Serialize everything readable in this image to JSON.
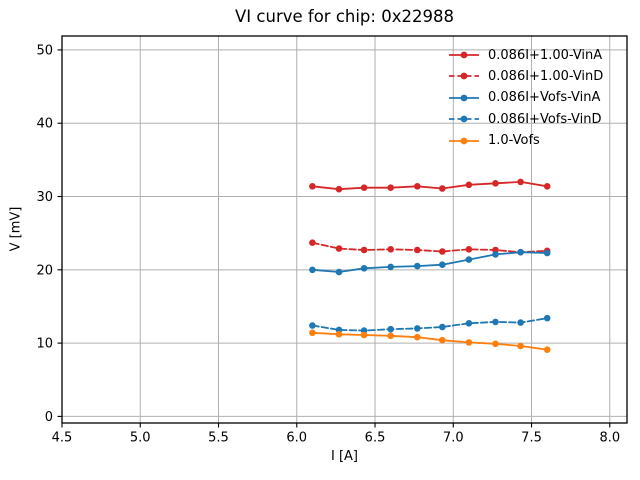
{
  "figure": {
    "title": "VI curve for chip: 0x22988"
  },
  "chart_data": {
    "type": "line",
    "title": "VI curve for chip: 0x22988",
    "xlabel": "I [A]",
    "ylabel": "V [mV]",
    "xlim": [
      4.5,
      8.11
    ],
    "ylim": [
      -0.9,
      51.9
    ],
    "xticks": [
      4.5,
      5.0,
      5.5,
      6.0,
      6.5,
      7.0,
      7.5,
      8.0
    ],
    "xtick_labels": [
      "4.5",
      "5.0",
      "5.5",
      "6.0",
      "6.5",
      "7.0",
      "7.5",
      "8.0"
    ],
    "yticks": [
      0,
      10,
      20,
      30,
      40,
      50
    ],
    "ytick_labels": [
      "0",
      "10",
      "20",
      "30",
      "40",
      "50"
    ],
    "grid": true,
    "grid_color": "#b0b0b0",
    "axis_color": "#000000",
    "background": "#ffffff",
    "legend_position": "upper right",
    "legend_frame": false,
    "x": [
      6.1,
      6.27,
      6.43,
      6.6,
      6.77,
      6.93,
      7.1,
      7.27,
      7.43,
      7.6
    ],
    "series": [
      {
        "name": "0.086I+1.00-VinA",
        "color": "#d62728",
        "line": "solid",
        "marker": "circle",
        "values": [
          31.4,
          31.0,
          31.2,
          31.2,
          31.4,
          31.1,
          31.6,
          31.8,
          32.0,
          31.4
        ]
      },
      {
        "name": "0.086I+1.00-VinD",
        "color": "#d62728",
        "line": "dashed",
        "marker": "circle",
        "values": [
          23.7,
          22.9,
          22.7,
          22.8,
          22.7,
          22.5,
          22.8,
          22.7,
          22.4,
          22.6
        ]
      },
      {
        "name": "0.086I+Vofs-VinA",
        "color": "#1f77b4",
        "line": "solid",
        "marker": "circle",
        "values": [
          20.0,
          19.7,
          20.2,
          20.4,
          20.5,
          20.7,
          21.4,
          22.1,
          22.4,
          22.3
        ]
      },
      {
        "name": "0.086I+Vofs-VinD",
        "color": "#1f77b4",
        "line": "dashed",
        "marker": "circle",
        "values": [
          12.4,
          11.8,
          11.7,
          11.9,
          12.0,
          12.2,
          12.7,
          12.9,
          12.8,
          13.4
        ]
      },
      {
        "name": "1.0-Vofs",
        "color": "#ff7f0e",
        "line": "solid",
        "marker": "circle",
        "values": [
          11.4,
          11.2,
          11.1,
          11.0,
          10.8,
          10.4,
          10.1,
          9.9,
          9.6,
          9.1
        ]
      }
    ]
  }
}
